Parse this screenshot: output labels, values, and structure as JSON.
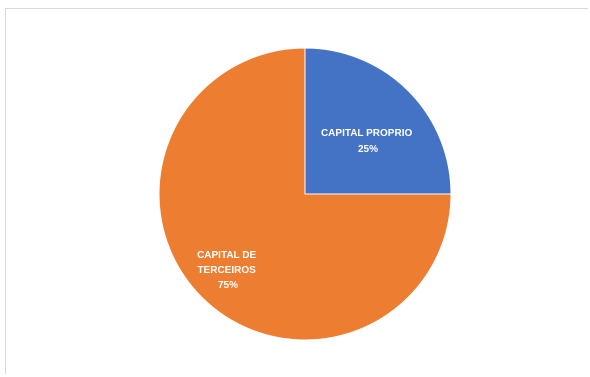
{
  "chart_data": {
    "type": "pie",
    "slices": [
      {
        "label": "CAPITAL PROPRIO",
        "value": 25,
        "percent_label": "25%",
        "color": "#4472c4"
      },
      {
        "label": "CAPITAL DE TERCEIROS",
        "value": 75,
        "percent_label": "75%",
        "color": "#ed7d31"
      }
    ],
    "title": "",
    "legend": "none",
    "data_labels": "inside"
  }
}
